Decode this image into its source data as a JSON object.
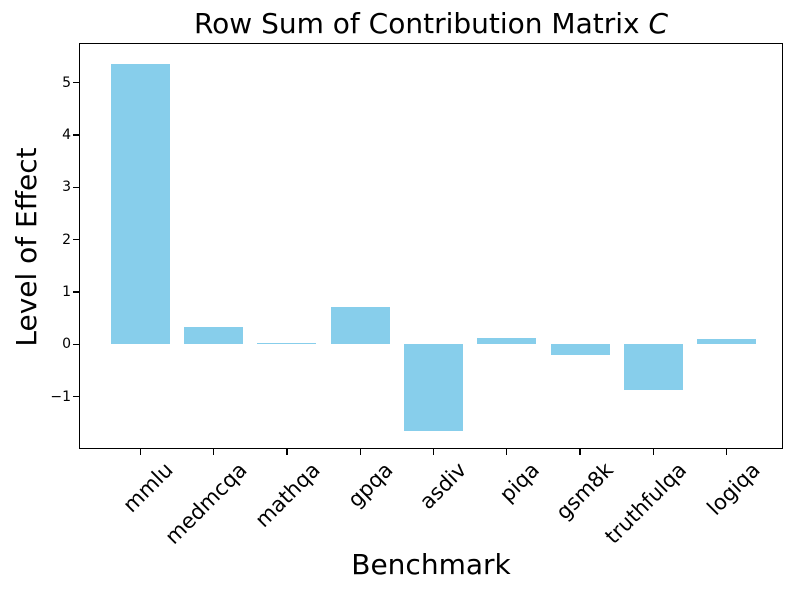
{
  "figure": {
    "title_prefix": "Row Sum of Contribution Matrix ",
    "title_italic_suffix": "C"
  },
  "chart_data": {
    "type": "bar",
    "title": "Row Sum of Contribution Matrix C",
    "xlabel": "Benchmark",
    "ylabel": "Level of Effect",
    "categories": [
      "mmlu",
      "medmcqa",
      "mathqa",
      "gpqa",
      "asdiv",
      "piqa",
      "gsm8k",
      "truthfulqa",
      "logiqa"
    ],
    "values": [
      5.35,
      0.34,
      0.02,
      0.72,
      -1.65,
      0.12,
      -0.21,
      -0.88,
      0.1
    ],
    "bar_color": "#87CEEB",
    "background_color": "#FFFFFF",
    "text_color": "#000000",
    "ylim": [
      -2.0,
      5.76
    ],
    "yticks": [
      -1,
      0,
      1,
      2,
      3,
      4,
      5
    ],
    "x_tick_rotation_deg": 45,
    "grid": false,
    "legend_visible": false
  }
}
